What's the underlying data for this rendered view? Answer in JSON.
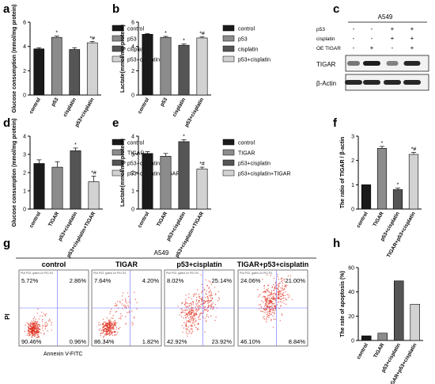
{
  "figure": {
    "panel_letters": [
      "a",
      "b",
      "c",
      "d",
      "e",
      "f",
      "g",
      "h"
    ],
    "western_blot": {
      "cell_line": "A549",
      "conditions": [
        {
          "label": "p53",
          "marks": [
            "-",
            "-",
            "+",
            "+"
          ]
        },
        {
          "label": "cisplatin",
          "marks": [
            "-",
            "-",
            "+",
            "+"
          ]
        },
        {
          "label": "OE TIGAR",
          "marks": [
            "-",
            "+",
            "-",
            "+"
          ]
        }
      ],
      "bands": [
        "TIGAR",
        "β-Actin"
      ]
    },
    "flow": {
      "cell_line": "A549",
      "ylabel": "PI",
      "xlabel": "Annexin V-FITC",
      "header": "Plot P02, gated on P01.R1",
      "plots": [
        {
          "title": "control",
          "ul": "5.72%",
          "ur": "2.86%",
          "ll": "90.46%",
          "lr": "0.96%"
        },
        {
          "title": "TIGAR",
          "ul": "7.64%",
          "ur": "4.20%",
          "ll": "86.34%",
          "lr": "1.82%"
        },
        {
          "title": "p53+cisplatin",
          "ul": "8.02%",
          "ur": "25.14%",
          "ll": "42.92%",
          "lr": "23.92%"
        },
        {
          "title": "TIGAR+p53+cisplatin",
          "ul": "24.06%",
          "ur": "21.00%",
          "ll": "46.10%",
          "lr": "8.84%"
        }
      ]
    }
  },
  "colors": {
    "black": "#1a1a1a",
    "dark": "#555555",
    "mid": "#8c8c8c",
    "light": "#d2d2d2",
    "white": "#ffffff",
    "scatter": "#e0311f"
  },
  "chart_data": [
    {
      "id": "a",
      "type": "bar",
      "ylabel": "Glucose consumption (mmol/mg protein)",
      "ylim": [
        0,
        6
      ],
      "yticks": [
        0,
        2,
        4,
        6
      ],
      "categories": [
        "control",
        "p53",
        "cisplatin",
        "p53+cisplatin"
      ],
      "values": [
        3.8,
        4.75,
        3.75,
        4.3
      ],
      "errors": [
        0.1,
        0.1,
        0.15,
        0.1
      ],
      "marks": [
        "",
        "*",
        "",
        "*#"
      ],
      "fills": [
        "black",
        "mid",
        "dark",
        "light"
      ],
      "legend": [
        "control",
        "p53",
        "cisplatin",
        "p53+cisplatin"
      ]
    },
    {
      "id": "b",
      "type": "bar",
      "ylabel": "Lactate(mmol/mg protein)",
      "ylim": [
        0,
        6
      ],
      "yticks": [
        0,
        2,
        4,
        6
      ],
      "categories": [
        "control",
        "p53",
        "cisplatin",
        "p53+cisplatin"
      ],
      "values": [
        5.0,
        4.75,
        4.1,
        4.7
      ],
      "errors": [
        0.05,
        0.08,
        0.1,
        0.08
      ],
      "marks": [
        "",
        "*",
        "*",
        "*#"
      ],
      "fills": [
        "black",
        "mid",
        "dark",
        "light"
      ],
      "legend": [
        "control",
        "p53",
        "cisplatin",
        "p53+cisplatin"
      ]
    },
    {
      "id": "d",
      "type": "bar",
      "ylabel": "Glucose consumption (mmol/mg protein)",
      "ylim": [
        0,
        4
      ],
      "yticks": [
        0,
        1,
        2,
        3,
        4
      ],
      "categories": [
        "control",
        "TIGAR",
        "p53+cisplatin",
        "p53+cisplatin+TIGAR"
      ],
      "values": [
        2.5,
        2.3,
        3.2,
        1.5
      ],
      "errors": [
        0.2,
        0.3,
        0.15,
        0.3
      ],
      "marks": [
        "",
        "",
        "*",
        "*#"
      ],
      "fills": [
        "black",
        "mid",
        "dark",
        "light"
      ],
      "legend": [
        "control",
        "TIGAR",
        "p53+cisplatin",
        "p53+cisplatin+TIGAR"
      ]
    },
    {
      "id": "e",
      "type": "bar",
      "ylabel": "Lactate(mmol/mg protein)",
      "ylim": [
        0,
        4
      ],
      "yticks": [
        0,
        1,
        2,
        3,
        4
      ],
      "categories": [
        "control",
        "TIGAR",
        "p53+cisplatin",
        "p53+cisplatin+TIGAR"
      ],
      "values": [
        3.05,
        2.9,
        3.7,
        2.2
      ],
      "errors": [
        0.1,
        0.15,
        0.1,
        0.1
      ],
      "marks": [
        "",
        "",
        "*",
        "*#"
      ],
      "fills": [
        "black",
        "mid",
        "dark",
        "light"
      ],
      "legend": [
        "control",
        "TIGAR",
        "p53+cisplatin",
        "p53+cisplatin+TIGAR"
      ]
    },
    {
      "id": "f",
      "type": "bar",
      "ylabel": "The ratio of TIGAR / β-actin",
      "ylim": [
        0,
        3
      ],
      "yticks": [
        0,
        1,
        2,
        3
      ],
      "categories": [
        "control",
        "TIGAR",
        "p53+cisplatin",
        "TIGAR+p53+cisplatin"
      ],
      "values": [
        1.0,
        2.5,
        0.8,
        2.25
      ],
      "errors": [
        0,
        0.08,
        0.06,
        0.08
      ],
      "marks": [
        "",
        "*",
        "*",
        "*#"
      ],
      "fills": [
        "black",
        "mid",
        "dark",
        "light"
      ],
      "legend": []
    },
    {
      "id": "h",
      "type": "bar",
      "ylabel": "The rate of apoptosis (%)",
      "ylim": [
        0,
        60
      ],
      "yticks": [
        0,
        20,
        40,
        60
      ],
      "categories": [
        "control",
        "TIGAR",
        "p53+cisplatin",
        "TIGAR+p53+cisplatin"
      ],
      "values": [
        3.82,
        6.02,
        49.06,
        29.84
      ],
      "errors": [
        0,
        0,
        0,
        0
      ],
      "marks": [
        "",
        "",
        "",
        ""
      ],
      "fills": [
        "black",
        "mid",
        "dark",
        "light"
      ],
      "legend": []
    }
  ]
}
